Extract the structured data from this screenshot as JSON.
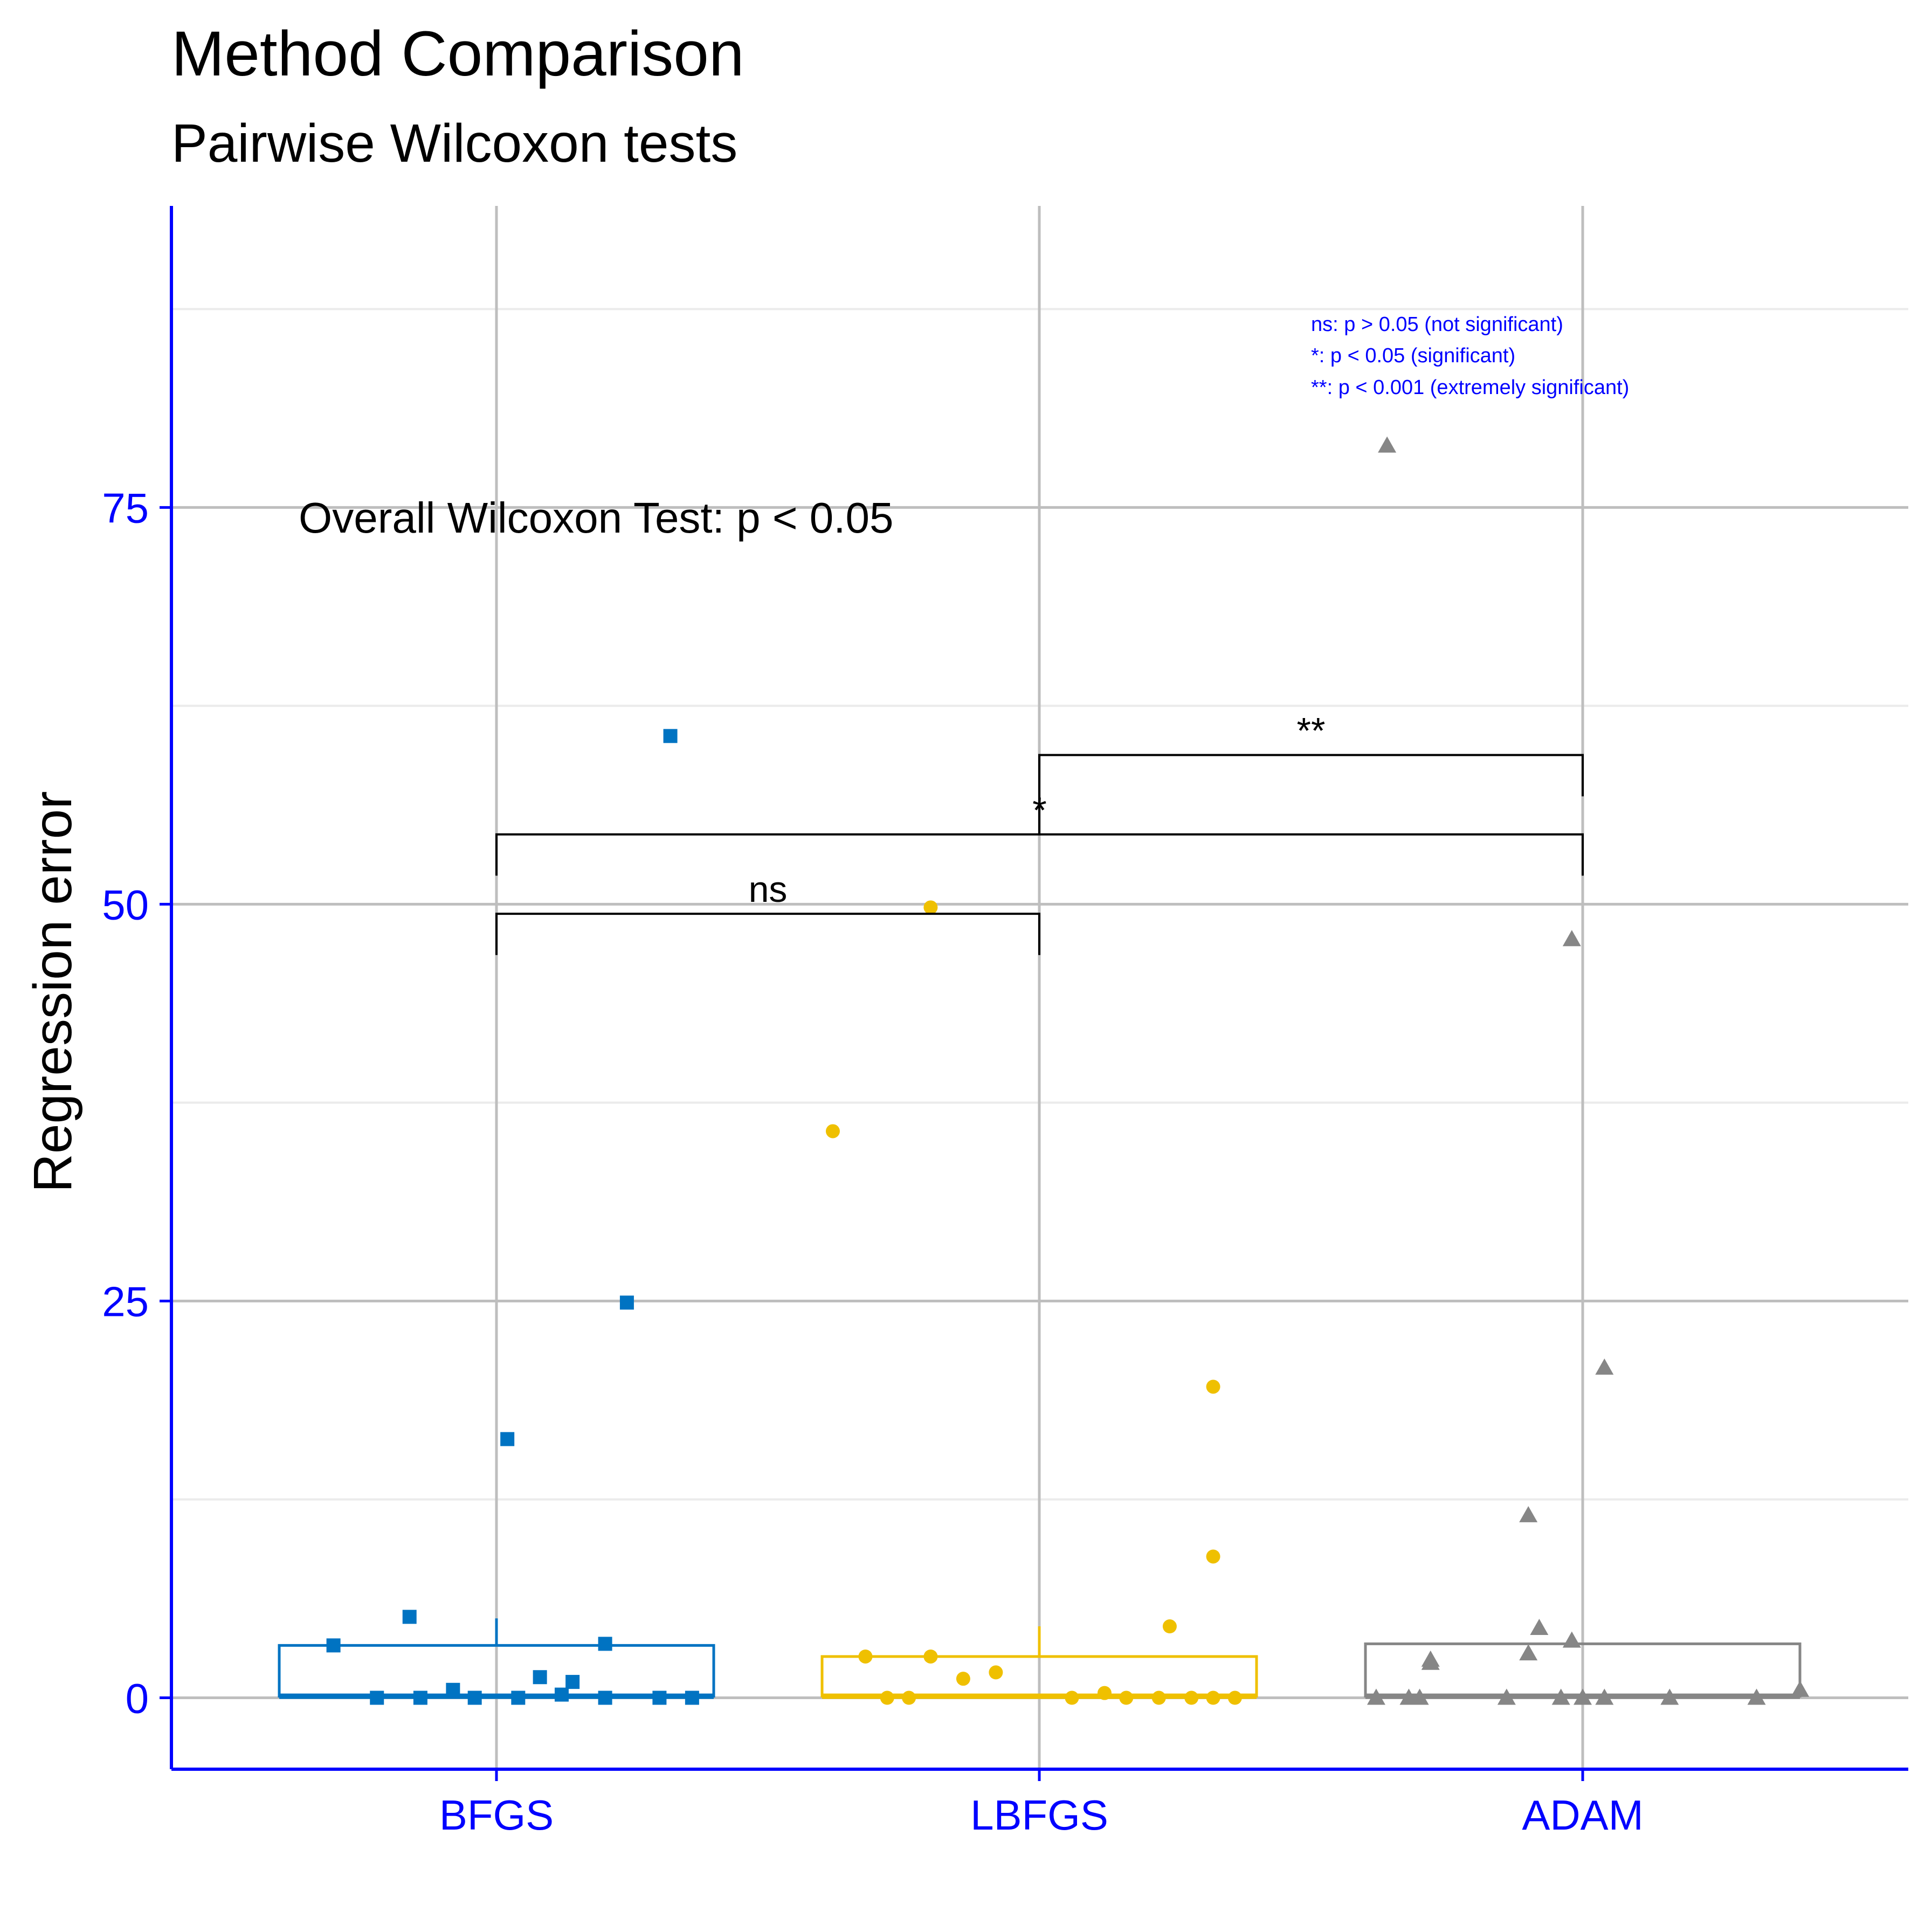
{
  "chart_data": {
    "type": "box",
    "title": "Method Comparison",
    "subtitle": "Pairwise Wilcoxon tests",
    "xlabel": "",
    "ylabel": "Regression error",
    "ylim": [
      -4.5,
      94
    ],
    "yticks": [
      0,
      25,
      50,
      75
    ],
    "grid": true,
    "annotation": "Overall Wilcoxon Test: p < 0.05",
    "significance_legend": [
      "ns: p > 0.05 (not significant)",
      "*: p < 0.05 (significant)",
      "**: p < 0.001 (extremely significant)"
    ],
    "colors": {
      "BFGS": "#0073C2",
      "LBFGS": "#EFC000",
      "ADAM": "#868686",
      "axis": "#0000FF",
      "grid_major": "#BEBEBE",
      "grid_minor": "#EBEBEB"
    },
    "categories": [
      "BFGS",
      "LBFGS",
      "ADAM"
    ],
    "boxes": [
      {
        "name": "BFGS",
        "q1": 0.1,
        "median": 0.1,
        "q3": 3.3,
        "whisker_low": 0.0,
        "whisker_high": 5.0
      },
      {
        "name": "LBFGS",
        "q1": 0.1,
        "median": 0.1,
        "q3": 2.6,
        "whisker_low": 0.0,
        "whisker_high": 4.5
      },
      {
        "name": "ADAM",
        "q1": 0.1,
        "median": 0.1,
        "q3": 3.4,
        "whisker_low": 0.0,
        "whisker_high": 3.4
      }
    ],
    "points": [
      {
        "group": "BFGS",
        "shape": "square",
        "points": [
          {
            "x": -0.11,
            "y": 0.0
          },
          {
            "x": -0.07,
            "y": 0.0
          },
          {
            "x": -0.04,
            "y": 0.5
          },
          {
            "x": -0.02,
            "y": 0.0
          },
          {
            "x": 0.02,
            "y": 0.0
          },
          {
            "x": 0.04,
            "y": 1.3
          },
          {
            "x": 0.06,
            "y": 0.2
          },
          {
            "x": 0.07,
            "y": 1.0
          },
          {
            "x": 0.1,
            "y": 0.0
          },
          {
            "x": 0.15,
            "y": 0.0
          },
          {
            "x": 0.18,
            "y": 0.0
          },
          {
            "x": -0.15,
            "y": 3.3
          },
          {
            "x": -0.08,
            "y": 5.1
          },
          {
            "x": 0.1,
            "y": 3.4
          },
          {
            "x": 0.01,
            "y": 16.3
          },
          {
            "x": 0.12,
            "y": 24.9
          },
          {
            "x": 0.16,
            "y": 60.6
          }
        ]
      },
      {
        "group": "LBFGS",
        "shape": "circle",
        "points": [
          {
            "x": -0.14,
            "y": 0.0
          },
          {
            "x": -0.12,
            "y": 0.0
          },
          {
            "x": -0.07,
            "y": 1.2
          },
          {
            "x": -0.04,
            "y": 1.6
          },
          {
            "x": 0.03,
            "y": 0.0
          },
          {
            "x": 0.06,
            "y": 0.3
          },
          {
            "x": 0.08,
            "y": 0.0
          },
          {
            "x": 0.11,
            "y": 0.0
          },
          {
            "x": 0.14,
            "y": 0.0
          },
          {
            "x": 0.16,
            "y": 0.0
          },
          {
            "x": 0.18,
            "y": 0.0
          },
          {
            "x": -0.16,
            "y": 2.6
          },
          {
            "x": -0.1,
            "y": 2.6
          },
          {
            "x": 0.12,
            "y": 4.5
          },
          {
            "x": 0.16,
            "y": 8.9
          },
          {
            "x": 0.16,
            "y": 19.6
          },
          {
            "x": -0.19,
            "y": 35.7
          },
          {
            "x": -0.1,
            "y": 49.8
          }
        ]
      },
      {
        "group": "ADAM",
        "shape": "triangle",
        "points": [
          {
            "x": -0.19,
            "y": 0.0
          },
          {
            "x": -0.16,
            "y": 0.0
          },
          {
            "x": -0.15,
            "y": 0.0
          },
          {
            "x": -0.07,
            "y": 0.0
          },
          {
            "x": -0.02,
            "y": 0.0
          },
          {
            "x": 0.0,
            "y": 0.0
          },
          {
            "x": 0.02,
            "y": 0.0
          },
          {
            "x": 0.08,
            "y": 0.0
          },
          {
            "x": 0.16,
            "y": 0.0
          },
          {
            "x": 0.2,
            "y": 0.5
          },
          {
            "x": -0.14,
            "y": 2.2
          },
          {
            "x": -0.14,
            "y": 2.4
          },
          {
            "x": -0.05,
            "y": 2.8
          },
          {
            "x": -0.01,
            "y": 3.6
          },
          {
            "x": -0.04,
            "y": 4.4
          },
          {
            "x": -0.05,
            "y": 11.5
          },
          {
            "x": 0.02,
            "y": 20.8
          },
          {
            "x": -0.01,
            "y": 47.8
          },
          {
            "x": -0.18,
            "y": 78.9
          }
        ]
      }
    ],
    "comparisons": [
      {
        "from": "BFGS",
        "to": "LBFGS",
        "label": "ns",
        "y": 49.4,
        "tip_from": 46.8,
        "tip_to": 46.8
      },
      {
        "from": "BFGS",
        "to": "ADAM",
        "label": "*",
        "y": 54.4,
        "tip_from": 51.8,
        "tip_to": 51.8
      },
      {
        "from": "LBFGS",
        "to": "ADAM",
        "label": "**",
        "y": 59.4,
        "tip_from": 54.4,
        "tip_to": 56.8
      }
    ]
  }
}
